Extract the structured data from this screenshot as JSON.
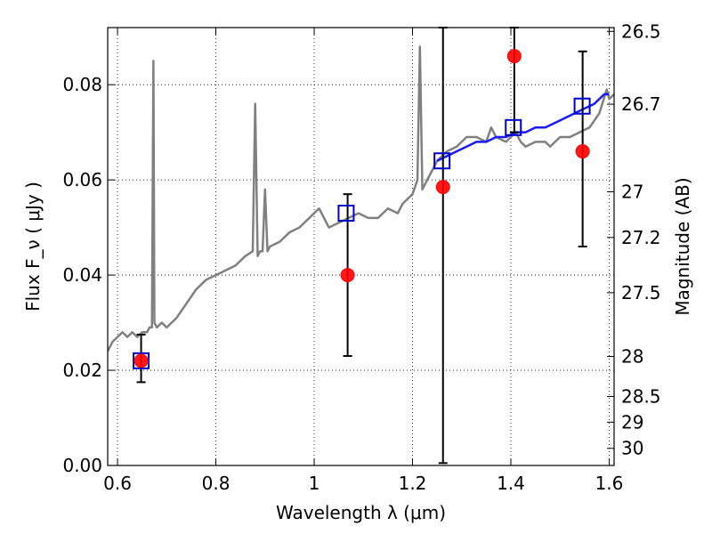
{
  "chart_data": {
    "type": "scatter",
    "xlabel": "Wavelength  λ (μm)",
    "ylabel_left": "Flux  F_ν  ( μJy )",
    "ylabel_right": "Magnitude (AB)",
    "xlim": [
      0.58,
      1.61
    ],
    "ylim": [
      0.0,
      0.092
    ],
    "grid": true,
    "x_ticks": [
      {
        "value": 0.6,
        "label": "0.6"
      },
      {
        "value": 0.8,
        "label": "0.8"
      },
      {
        "value": 1.0,
        "label": "1"
      },
      {
        "value": 1.2,
        "label": "1.2"
      },
      {
        "value": 1.4,
        "label": "1.4"
      },
      {
        "value": 1.6,
        "label": "1.6"
      }
    ],
    "y_ticks": [
      {
        "value": 0.0,
        "label": "0.00"
      },
      {
        "value": 0.02,
        "label": "0.02"
      },
      {
        "value": 0.04,
        "label": "0.04"
      },
      {
        "value": 0.06,
        "label": "0.06"
      },
      {
        "value": 0.08,
        "label": "0.08"
      }
    ],
    "right_ticks": [
      {
        "label": "26.5",
        "flux": 0.0912
      },
      {
        "label": "26.7",
        "flux": 0.0759
      },
      {
        "label": "27",
        "flux": 0.0575
      },
      {
        "label": "27.2",
        "flux": 0.0479
      },
      {
        "label": "27.5",
        "flux": 0.0363
      },
      {
        "label": "28",
        "flux": 0.0229
      },
      {
        "label": "28.5",
        "flux": 0.0145
      },
      {
        "label": "29",
        "flux": 0.0091
      },
      {
        "label": "30",
        "flux": 0.0036
      }
    ],
    "series": [
      {
        "kind": "line",
        "color": "#808080",
        "x": [
          0.58,
          0.59,
          0.6,
          0.61,
          0.62,
          0.63,
          0.64,
          0.65,
          0.66,
          0.665,
          0.67,
          0.673,
          0.675,
          0.68,
          0.69,
          0.7,
          0.72,
          0.74,
          0.76,
          0.78,
          0.8,
          0.82,
          0.84,
          0.86,
          0.875,
          0.88,
          0.885,
          0.89,
          0.895,
          0.9,
          0.905,
          0.91,
          0.93,
          0.95,
          0.97,
          0.98,
          1.0,
          1.01,
          1.02,
          1.03,
          1.05,
          1.07,
          1.09,
          1.11,
          1.13,
          1.15,
          1.17,
          1.18,
          1.19,
          1.2,
          1.21,
          1.215,
          1.22,
          1.23,
          1.25,
          1.27,
          1.29,
          1.31,
          1.33,
          1.35,
          1.36,
          1.37,
          1.39,
          1.41,
          1.42,
          1.43,
          1.45,
          1.47,
          1.48,
          1.49,
          1.5,
          1.52,
          1.54,
          1.56,
          1.58,
          1.595,
          1.6,
          1.61
        ],
        "y": [
          0.024,
          0.026,
          0.027,
          0.028,
          0.027,
          0.028,
          0.027,
          0.028,
          0.028,
          0.029,
          0.029,
          0.085,
          0.03,
          0.029,
          0.03,
          0.029,
          0.031,
          0.034,
          0.037,
          0.039,
          0.04,
          0.041,
          0.042,
          0.044,
          0.045,
          0.076,
          0.044,
          0.045,
          0.045,
          0.058,
          0.045,
          0.046,
          0.047,
          0.049,
          0.05,
          0.051,
          0.053,
          0.054,
          0.052,
          0.05,
          0.051,
          0.052,
          0.053,
          0.052,
          0.052,
          0.054,
          0.053,
          0.055,
          0.056,
          0.057,
          0.06,
          0.088,
          0.058,
          0.06,
          0.064,
          0.066,
          0.067,
          0.069,
          0.069,
          0.068,
          0.071,
          0.069,
          0.068,
          0.07,
          0.068,
          0.067,
          0.068,
          0.068,
          0.067,
          0.068,
          0.069,
          0.069,
          0.07,
          0.071,
          0.074,
          0.079,
          0.077,
          0.078
        ]
      },
      {
        "kind": "line",
        "color": "#1a1aff",
        "x": [
          1.25,
          1.27,
          1.29,
          1.31,
          1.33,
          1.35,
          1.37,
          1.39,
          1.41,
          1.43,
          1.45,
          1.47,
          1.49,
          1.51,
          1.53,
          1.55,
          1.57,
          1.59,
          1.6
        ],
        "y": [
          0.064,
          0.065,
          0.066,
          0.067,
          0.068,
          0.068,
          0.069,
          0.069,
          0.07,
          0.07,
          0.071,
          0.071,
          0.072,
          0.073,
          0.074,
          0.075,
          0.076,
          0.078,
          0.078
        ]
      },
      {
        "kind": "markers",
        "marker": "open-square",
        "color": "#0000cc",
        "x": [
          0.648,
          1.065,
          1.26,
          1.405,
          1.545
        ],
        "y": [
          0.022,
          0.053,
          0.064,
          0.071,
          0.0755
        ]
      },
      {
        "kind": "markers",
        "marker": "filled-circle",
        "color": "#ff0000",
        "x": [
          0.648,
          1.068,
          1.262,
          1.407,
          1.546
        ],
        "y": [
          0.022,
          0.04,
          0.0585,
          0.086,
          0.066
        ],
        "yerr_low": [
          0.0045,
          0.017,
          0.058,
          0.016,
          0.02
        ],
        "yerr_high": [
          0.0055,
          0.017,
          0.04,
          0.016,
          0.021
        ]
      }
    ]
  }
}
